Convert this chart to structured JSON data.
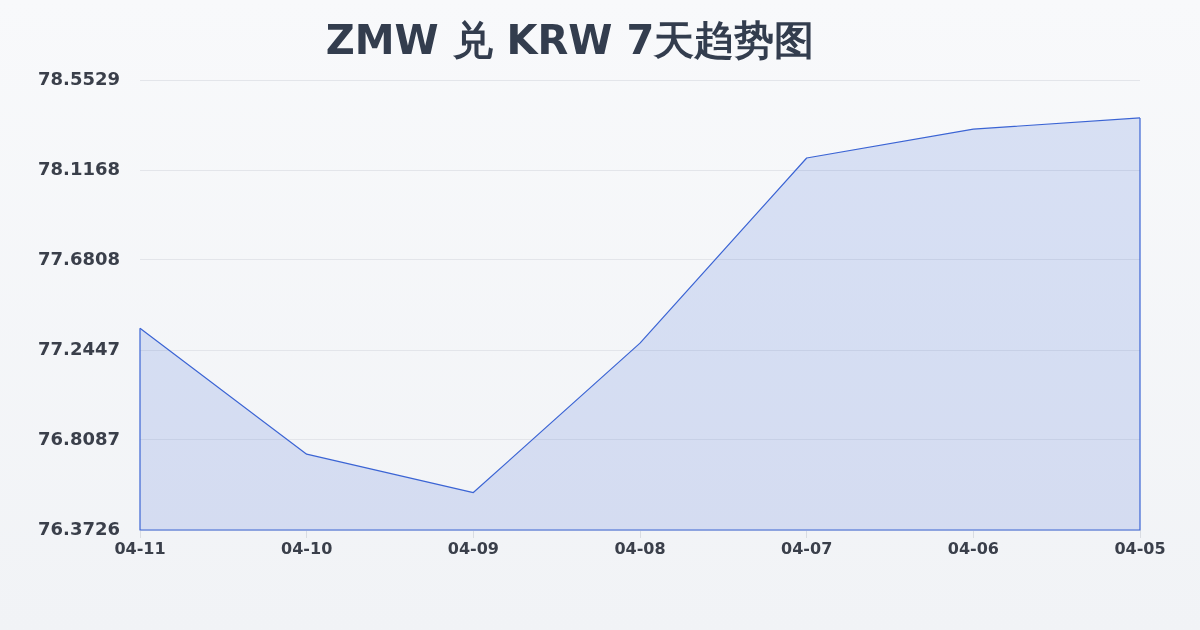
{
  "chart_data": {
    "type": "area",
    "title": "ZMW 兑 KRW 7天趋势图",
    "categories": [
      "04-11",
      "04-10",
      "04-09",
      "04-08",
      "04-07",
      "04-06",
      "04-05"
    ],
    "values": [
      77.35,
      76.74,
      76.554,
      77.278,
      78.175,
      78.315,
      78.369
    ],
    "color": "#3b64d4",
    "ylim": [
      76.3726,
      78.5529
    ],
    "yticks": [
      76.3726,
      76.8087,
      77.2447,
      77.6808,
      78.1168,
      78.5529
    ],
    "grid": "y",
    "legend": false,
    "marker": "none"
  }
}
